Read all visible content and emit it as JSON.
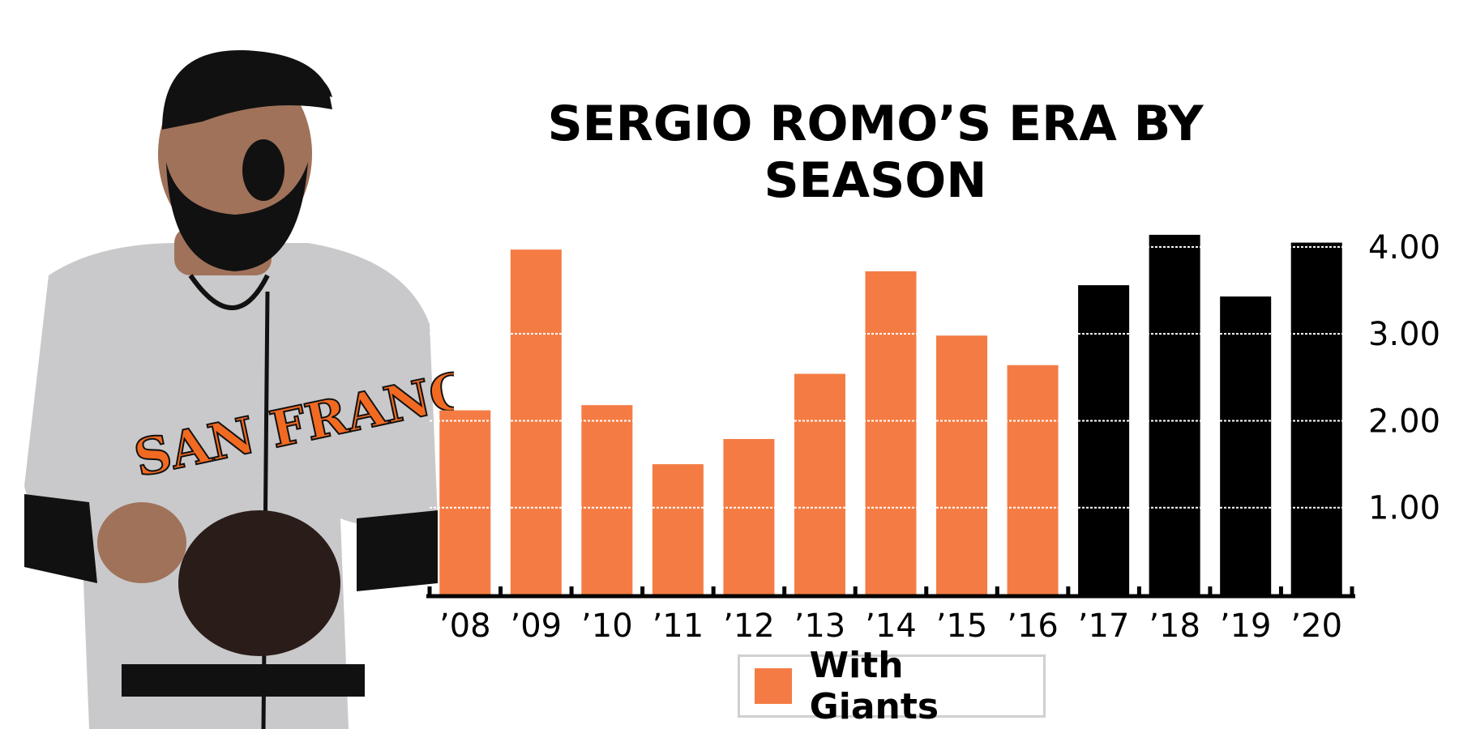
{
  "colors": {
    "giants": "#f47c44",
    "other": "#000000",
    "jersey": "#c9c9cb",
    "trim": "#f26a21",
    "skin": "#a0725a",
    "dark": "#111111"
  },
  "photo": {
    "icon": "baseball-player-photo",
    "jersey_text": "SAN FRANCISCO"
  },
  "legend": {
    "label": "With Giants"
  },
  "chart_data": {
    "type": "bar",
    "title": "SERGIO ROMO’S ERA BY SEASON",
    "categories": [
      "’08",
      "’09",
      "’10",
      "’11",
      "’12",
      "’13",
      "’14",
      "’15",
      "’16",
      "’17",
      "’18",
      "’19",
      "’20"
    ],
    "values": [
      2.12,
      3.97,
      2.18,
      1.5,
      1.79,
      2.54,
      3.72,
      2.98,
      2.64,
      3.56,
      4.14,
      3.43,
      4.05
    ],
    "with_giants": [
      true,
      true,
      true,
      true,
      true,
      true,
      true,
      true,
      true,
      false,
      false,
      false,
      false
    ],
    "y_ticks": [
      1,
      2,
      3,
      4
    ],
    "y_tick_labels": [
      "1.00",
      "2.00",
      "3.00",
      "4.00"
    ],
    "ylim": [
      0,
      4.4
    ],
    "y_axis_side": "right",
    "grid": "dotted white lines over bars",
    "legend_position": "bottom-center",
    "xlabel": "",
    "ylabel": ""
  }
}
